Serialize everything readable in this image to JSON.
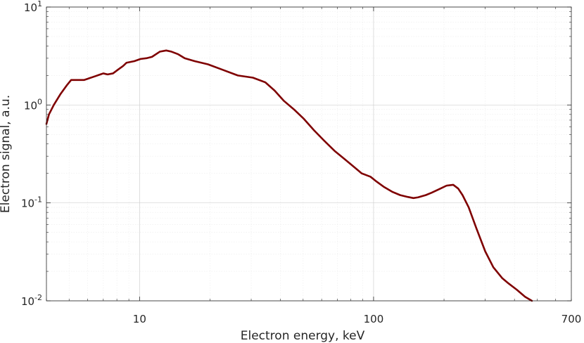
{
  "chart_data": {
    "type": "line",
    "xlabel": "Electron energy, keV",
    "ylabel": "Electron signal, a.u.",
    "x_scale": "log",
    "y_scale": "log",
    "xlim": [
      4,
      700
    ],
    "ylim": [
      0.01,
      10
    ],
    "grid": true,
    "x_ticks": [
      {
        "value": 10,
        "label": "10"
      },
      {
        "value": 100,
        "label": "100"
      },
      {
        "value": 700,
        "label": "700"
      }
    ],
    "y_ticks": [
      {
        "value": 0.01,
        "base": "10",
        "exp": "-2"
      },
      {
        "value": 0.1,
        "base": "10",
        "exp": "-1"
      },
      {
        "value": 1,
        "base": "10",
        "exp": "0"
      },
      {
        "value": 10,
        "base": "10",
        "exp": "1"
      }
    ],
    "series": [
      {
        "color": "#7f0000",
        "x": [
          4.0,
          4.1,
          4.3,
          4.6,
          4.9,
          5.1,
          5.5,
          5.8,
          6.0,
          6.4,
          6.8,
          7.0,
          7.3,
          7.7,
          8.1,
          8.5,
          8.8,
          9.5,
          10.1,
          10.7,
          11.3,
          12.2,
          13.0,
          13.7,
          14.6,
          15.6,
          17.2,
          19.6,
          22.5,
          26.3,
          30.5,
          34.5,
          37.8,
          41.4,
          45.7,
          50.4,
          55.7,
          61.6,
          68.1,
          75.2,
          83.0,
          89.0,
          97.0,
          103.0,
          111.0,
          120.0,
          130.0,
          140.0,
          148.0,
          155.0,
          161.0,
          167.0,
          177.0,
          193.0,
          205.0,
          219.0,
          230.0,
          240.0,
          255.0,
          275.0,
          300.0,
          325.0,
          355.0,
          378.0,
          409.0,
          444.0,
          475.0
        ],
        "y": [
          0.64,
          0.8,
          1.0,
          1.3,
          1.6,
          1.8,
          1.8,
          1.8,
          1.85,
          1.95,
          2.05,
          2.1,
          2.05,
          2.1,
          2.3,
          2.5,
          2.7,
          2.8,
          2.95,
          3.0,
          3.1,
          3.5,
          3.6,
          3.5,
          3.3,
          3.0,
          2.8,
          2.6,
          2.3,
          2.0,
          1.9,
          1.7,
          1.4,
          1.1,
          0.9,
          0.72,
          0.55,
          0.43,
          0.34,
          0.28,
          0.23,
          0.2,
          0.185,
          0.165,
          0.145,
          0.13,
          0.12,
          0.115,
          0.112,
          0.114,
          0.117,
          0.12,
          0.127,
          0.14,
          0.15,
          0.153,
          0.14,
          0.12,
          0.09,
          0.055,
          0.032,
          0.022,
          0.017,
          0.015,
          0.013,
          0.011,
          0.01
        ]
      }
    ]
  }
}
